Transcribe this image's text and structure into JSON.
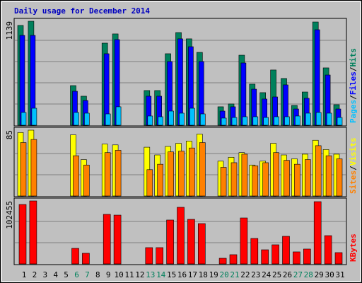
{
  "chart_data": [
    {
      "type": "bar",
      "title": "Daily usage for December 2014",
      "legend_separator": "/",
      "ylim": [
        0,
        1139
      ],
      "yticks": [
        1139
      ],
      "series": [
        {
          "name": "Hits",
          "color": "#00805c",
          "values": [
            1093,
            1139,
            0,
            0,
            0,
            434,
            318,
            0,
            899,
            1000,
            0,
            0,
            380,
            380,
            783,
            1015,
            946,
            798,
            0,
            202,
            233,
            767,
            450,
            357,
            605,
            512,
            217,
            364,
            1131,
            628,
            225
          ]
        },
        {
          "name": "Files",
          "color": "#0000ff",
          "values": [
            984,
            984,
            0,
            0,
            0,
            372,
            271,
            0,
            783,
            938,
            0,
            0,
            318,
            318,
            698,
            946,
            860,
            698,
            0,
            155,
            202,
            682,
            395,
            287,
            310,
            442,
            178,
            295,
            1046,
            550,
            178
          ]
        },
        {
          "name": "Pages",
          "color": "#00c0ff",
          "values": [
            140,
            186,
            0,
            0,
            0,
            140,
            132,
            0,
            124,
            202,
            0,
            0,
            101,
            93,
            155,
            132,
            186,
            124,
            0,
            78,
            85,
            93,
            93,
            85,
            93,
            93,
            101,
            132,
            140,
            132,
            85
          ]
        }
      ]
    },
    {
      "type": "bar",
      "legend_separator": "/",
      "ylim": [
        0,
        85
      ],
      "yticks": [
        85
      ],
      "series": [
        {
          "name": "Visits",
          "color": "#ffff00",
          "values": [
            82,
            85,
            0,
            0,
            0,
            79,
            47,
            0,
            67,
            66,
            0,
            0,
            63,
            53,
            64,
            68,
            71,
            80,
            0,
            45,
            50,
            56,
            40,
            45,
            68,
            53,
            48,
            54,
            72,
            60,
            54
          ]
        },
        {
          "name": "Sites",
          "color": "#ff8000",
          "values": [
            69,
            73,
            0,
            0,
            0,
            52,
            40,
            0,
            56,
            59,
            0,
            0,
            34,
            41,
            57,
            58,
            62,
            69,
            0,
            37,
            43,
            54,
            39,
            43,
            56,
            46,
            41,
            47,
            65,
            52,
            48
          ]
        }
      ]
    },
    {
      "type": "bar",
      "ylim": [
        0,
        102455
      ],
      "yticks": [
        102455
      ],
      "categories": [
        "1",
        "2",
        "3",
        "4",
        "5",
        "6",
        "7",
        "8",
        "9",
        "10",
        "11",
        "12",
        "13",
        "14",
        "15",
        "16",
        "17",
        "18",
        "19",
        "20",
        "21",
        "22",
        "23",
        "24",
        "25",
        "26",
        "27",
        "28",
        "29",
        "30",
        "31"
      ],
      "label_colors": [
        "#000000",
        "#000000",
        "#000000",
        "#000000",
        "#000000",
        "#00805c",
        "#00805c",
        "#000000",
        "#000000",
        "#000000",
        "#000000",
        "#000000",
        "#00805c",
        "#00805c",
        "#000000",
        "#000000",
        "#000000",
        "#000000",
        "#000000",
        "#00805c",
        "#00805c",
        "#000000",
        "#000000",
        "#000000",
        "#000000",
        "#000000",
        "#00805c",
        "#00805c",
        "#000000",
        "#000000",
        "#000000"
      ],
      "series": [
        {
          "name": "KBytes",
          "color": "#ff0000",
          "values": [
            96700,
            102455,
            0,
            0,
            0,
            25300,
            17300,
            0,
            80600,
            79400,
            0,
            0,
            26500,
            26500,
            71400,
            92100,
            72500,
            65600,
            0,
            9200,
            15000,
            74800,
            41400,
            23000,
            31100,
            44900,
            19600,
            24200,
            101300,
            46000,
            18400
          ]
        }
      ]
    }
  ]
}
